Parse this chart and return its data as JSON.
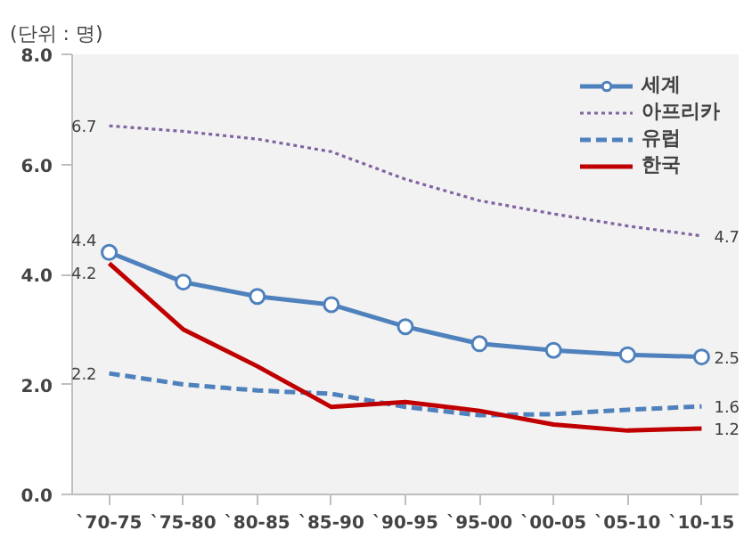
{
  "chart_data": {
    "type": "line",
    "title": "(단위 : 명)",
    "categories": [
      "`70-75",
      "`75-80",
      "`80-85",
      "`85-90",
      "`90-95",
      "`95-00",
      "`00-05",
      "`05-10",
      "`10-15"
    ],
    "series": [
      {
        "name": "세계",
        "color": "#4f81bd",
        "line_style": "solid",
        "marker": "circle",
        "values": [
          4.4,
          3.86,
          3.6,
          3.45,
          3.05,
          2.74,
          2.62,
          2.54,
          2.5
        ],
        "value_labels": [
          "4.4",
          null,
          null,
          null,
          null,
          null,
          null,
          null,
          "2.5"
        ]
      },
      {
        "name": "아프리카",
        "color": "#8064a2",
        "line_style": "dotted",
        "marker": "none",
        "values": [
          6.7,
          6.6,
          6.46,
          6.23,
          5.73,
          5.34,
          5.1,
          4.88,
          4.7
        ],
        "value_labels": [
          "6.7",
          null,
          null,
          null,
          null,
          null,
          null,
          null,
          "4.7"
        ]
      },
      {
        "name": "유럽",
        "color": "#4f81bd",
        "line_style": "dashed",
        "marker": "none",
        "values": [
          2.2,
          2.0,
          1.89,
          1.83,
          1.59,
          1.44,
          1.46,
          1.54,
          1.6
        ],
        "value_labels": [
          "2.2",
          null,
          null,
          null,
          null,
          null,
          null,
          null,
          "1.6"
        ]
      },
      {
        "name": "한국",
        "color": "#c00000",
        "line_style": "solid",
        "marker": "none",
        "values": [
          4.2,
          3.0,
          2.33,
          1.59,
          1.68,
          1.52,
          1.27,
          1.16,
          1.2
        ],
        "value_labels": [
          "4.2",
          null,
          null,
          null,
          null,
          null,
          null,
          null,
          "1.2"
        ]
      }
    ],
    "ylim": [
      0,
      8
    ],
    "yticks": [
      {
        "value": 0,
        "label": "0.0"
      },
      {
        "value": 2,
        "label": "2.0"
      },
      {
        "value": 4,
        "label": "4.0"
      },
      {
        "value": 6,
        "label": "6.0"
      },
      {
        "value": 8,
        "label": "8.0"
      }
    ],
    "grid": false,
    "legend": "top right"
  }
}
